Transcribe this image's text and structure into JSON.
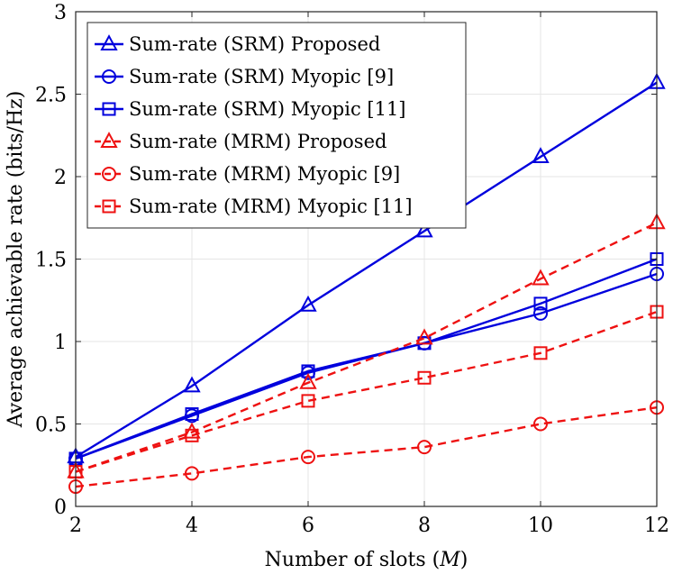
{
  "chart_data": {
    "type": "line",
    "title": "",
    "xlabel": "Number of slots (",
    "xlabel_var": "M",
    "xlabel_suffix": ")",
    "ylabel": "Average achievable rate (bits/Hz)",
    "x": [
      2,
      4,
      6,
      8,
      10,
      12
    ],
    "xlim": [
      2,
      12
    ],
    "ylim": [
      0,
      3
    ],
    "xticks": [
      "2",
      "4",
      "6",
      "8",
      "10",
      "12"
    ],
    "yticks": [
      "0",
      "0.5",
      "1",
      "1.5",
      "2",
      "2.5",
      "3"
    ],
    "grid": true,
    "legend_position": "top-left",
    "series": [
      {
        "name": "Sum-rate (SRM) Proposed",
        "color": "#0000dd",
        "dash": "solid",
        "marker": "triangle",
        "values": [
          0.3,
          0.73,
          1.22,
          1.67,
          2.12,
          2.57
        ]
      },
      {
        "name": "Sum-rate (SRM) Myopic [9]",
        "color": "#0000dd",
        "dash": "solid",
        "marker": "circle",
        "values": [
          0.29,
          0.55,
          0.81,
          0.99,
          1.17,
          1.41
        ]
      },
      {
        "name": "Sum-rate (SRM) Myopic [11]",
        "color": "#0000dd",
        "dash": "solid",
        "marker": "square",
        "values": [
          0.29,
          0.56,
          0.82,
          0.99,
          1.23,
          1.5
        ]
      },
      {
        "name": "Sum-rate (MRM) Proposed",
        "color": "#ee1111",
        "dash": "dashed",
        "marker": "triangle",
        "values": [
          0.21,
          0.45,
          0.75,
          1.02,
          1.38,
          1.72
        ]
      },
      {
        "name": "Sum-rate (MRM) Myopic [9]",
        "color": "#ee1111",
        "dash": "dashed",
        "marker": "circle",
        "values": [
          0.12,
          0.2,
          0.3,
          0.36,
          0.5,
          0.6
        ]
      },
      {
        "name": "Sum-rate (MRM) Myopic [11]",
        "color": "#ee1111",
        "dash": "dashed",
        "marker": "square",
        "values": [
          0.21,
          0.43,
          0.64,
          0.78,
          0.93,
          1.18
        ]
      }
    ]
  }
}
